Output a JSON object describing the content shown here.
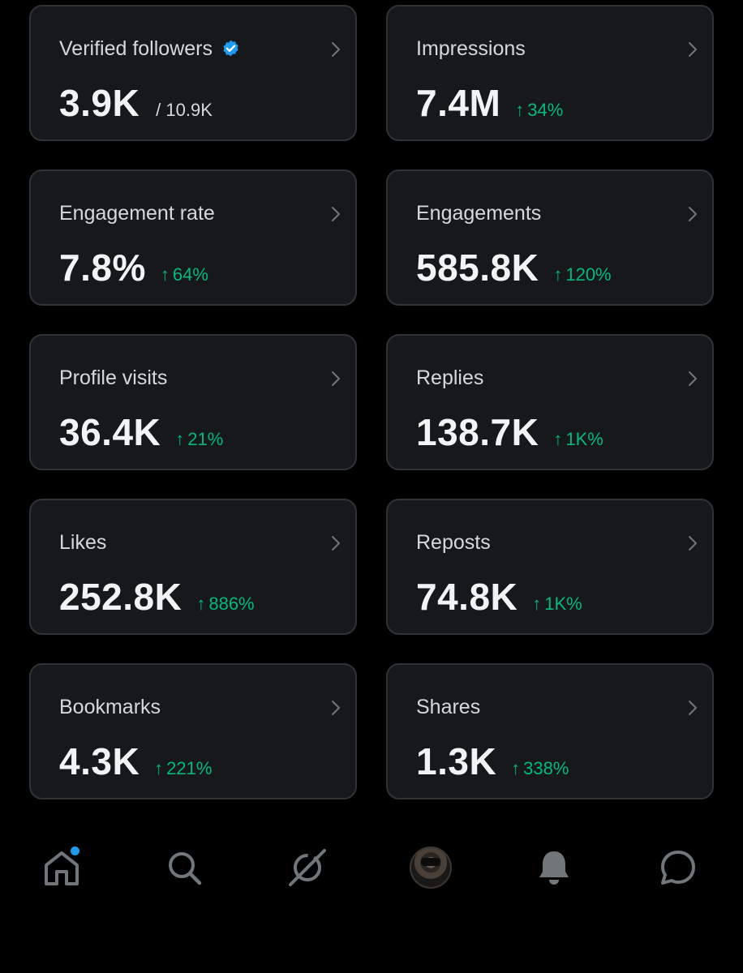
{
  "cards": [
    {
      "title": "Verified followers",
      "value": "3.9K",
      "total": "/ 10.9K",
      "change": ""
    },
    {
      "title": "Impressions",
      "value": "7.4M",
      "total": "",
      "change": "34%"
    },
    {
      "title": "Engagement rate",
      "value": "7.8%",
      "total": "",
      "change": "64%"
    },
    {
      "title": "Engagements",
      "value": "585.8K",
      "total": "",
      "change": "120%"
    },
    {
      "title": "Profile visits",
      "value": "36.4K",
      "total": "",
      "change": "21%"
    },
    {
      "title": "Replies",
      "value": "138.7K",
      "total": "",
      "change": "1K%"
    },
    {
      "title": "Likes",
      "value": "252.8K",
      "total": "",
      "change": "886%"
    },
    {
      "title": "Reposts",
      "value": "74.8K",
      "total": "",
      "change": "1K%"
    },
    {
      "title": "Bookmarks",
      "value": "4.3K",
      "total": "",
      "change": "221%"
    },
    {
      "title": "Shares",
      "value": "1.3K",
      "total": "",
      "change": "338%"
    }
  ],
  "arrow_glyph": "↑",
  "colors": {
    "background": "#000000",
    "card_bg": "#16181c",
    "card_border": "#2f3336",
    "positive": "#00ba7c",
    "verified": "#1d9bf0",
    "icon": "#71767b"
  },
  "bottom_nav": {
    "items": [
      "home-icon",
      "search-icon",
      "grok-icon",
      "avatar",
      "notifications-icon",
      "messages-icon"
    ],
    "home_has_notification_dot": true
  }
}
